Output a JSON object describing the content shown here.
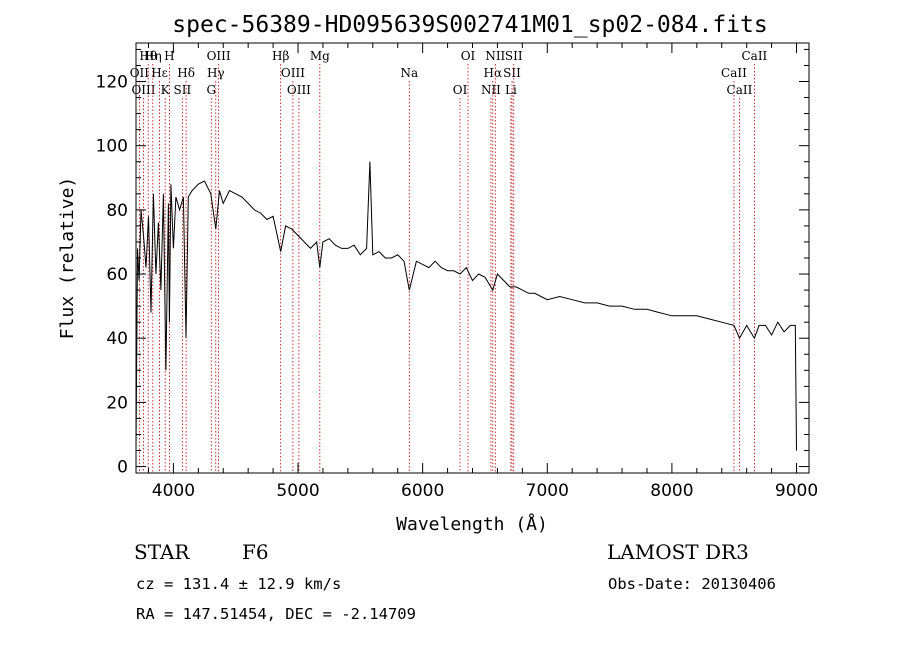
{
  "chart_data": {
    "type": "line",
    "title": "spec-56389-HD095639S002741M01_sp02-084.fits",
    "xlabel": "Wavelength (Å)",
    "ylabel": "Flux (relative)",
    "xlim": [
      3700,
      9100
    ],
    "ylim": [
      -2,
      132
    ],
    "xticks": [
      4000,
      5000,
      6000,
      7000,
      8000,
      9000
    ],
    "yticks": [
      0,
      20,
      40,
      60,
      80,
      100,
      120
    ],
    "series": [
      {
        "name": "flux",
        "x": [
          3700,
          3712,
          3725,
          3740,
          3760,
          3780,
          3800,
          3820,
          3840,
          3860,
          3880,
          3900,
          3920,
          3940,
          3960,
          3968,
          3980,
          4000,
          4020,
          4050,
          4080,
          4101,
          4120,
          4150,
          4200,
          4250,
          4300,
          4340,
          4370,
          4400,
          4450,
          4500,
          4550,
          4600,
          4650,
          4700,
          4750,
          4800,
          4861,
          4900,
          4950,
          5000,
          5050,
          5100,
          5150,
          5175,
          5200,
          5250,
          5300,
          5350,
          5400,
          5450,
          5500,
          5550,
          5577,
          5600,
          5650,
          5700,
          5750,
          5800,
          5850,
          5893,
          5950,
          6000,
          6050,
          6100,
          6150,
          6200,
          6250,
          6300,
          6350,
          6400,
          6450,
          6500,
          6563,
          6600,
          6650,
          6700,
          6750,
          6800,
          6850,
          6900,
          6950,
          7000,
          7100,
          7200,
          7300,
          7400,
          7500,
          7600,
          7700,
          7800,
          7900,
          8000,
          8100,
          8200,
          8300,
          8400,
          8498,
          8542,
          8600,
          8662,
          8700,
          8750,
          8800,
          8850,
          8900,
          8950,
          8990,
          9000
        ],
        "y": [
          5,
          68,
          58,
          80,
          72,
          62,
          78,
          48,
          85,
          60,
          76,
          55,
          85,
          30,
          82,
          45,
          88,
          68,
          84,
          80,
          84,
          40,
          84,
          86,
          88,
          89,
          85,
          74,
          86,
          82,
          86,
          85,
          84,
          82,
          80,
          79,
          77,
          78,
          67,
          75,
          74,
          72,
          70,
          68,
          70,
          62,
          70,
          71,
          69,
          68,
          68,
          69,
          66,
          68,
          95,
          66,
          67,
          65,
          65,
          66,
          64,
          55,
          64,
          63,
          62,
          64,
          62,
          61,
          61,
          60,
          62,
          58,
          60,
          59,
          55,
          60,
          58,
          56,
          56,
          55,
          54,
          54,
          53,
          52,
          53,
          52,
          51,
          51,
          50,
          50,
          49,
          49,
          48,
          47,
          47,
          47,
          46,
          45,
          44,
          40,
          44,
          40,
          44,
          44,
          41,
          45,
          42,
          44,
          44,
          5
        ]
      }
    ],
    "spectral_lines": [
      {
        "name": "Hθ",
        "wavelength": 3798
      },
      {
        "name": "OII",
        "wavelength": 3727
      },
      {
        "name": "OIII",
        "wavelength": 3760
      },
      {
        "name": "Hη",
        "wavelength": 3835
      },
      {
        "name": "Hε",
        "wavelength": 3889
      },
      {
        "name": "K",
        "wavelength": 3934
      },
      {
        "name": "H",
        "wavelength": 3968
      },
      {
        "name": "Hδ",
        "wavelength": 4102
      },
      {
        "name": "SII",
        "wavelength": 4072
      },
      {
        "name": "OIII",
        "wavelength": 4363
      },
      {
        "name": "Hγ",
        "wavelength": 4340
      },
      {
        "name": "G",
        "wavelength": 4304
      },
      {
        "name": "Hβ",
        "wavelength": 4861
      },
      {
        "name": "OIII",
        "wavelength": 4959
      },
      {
        "name": "OIII",
        "wavelength": 5007
      },
      {
        "name": "Mg",
        "wavelength": 5175
      },
      {
        "name": "Na",
        "wavelength": 5893
      },
      {
        "name": "OI",
        "wavelength": 6300
      },
      {
        "name": "OI",
        "wavelength": 6364
      },
      {
        "name": "Hα",
        "wavelength": 6563
      },
      {
        "name": "NII",
        "wavelength": 6548
      },
      {
        "name": "NII",
        "wavelength": 6583
      },
      {
        "name": "SII",
        "wavelength": 6717
      },
      {
        "name": "Li",
        "wavelength": 6708
      },
      {
        "name": "SII",
        "wavelength": 6731
      },
      {
        "name": "CaII",
        "wavelength": 8498
      },
      {
        "name": "CaII",
        "wavelength": 8542
      },
      {
        "name": "CaII",
        "wavelength": 8662
      }
    ]
  },
  "info": {
    "object_class": "STAR",
    "subclass": "F6",
    "survey": "LAMOST DR3",
    "redshift": "cz = 131.4 ± 12.9 km/s",
    "obs_date": "Obs-Date: 20130406",
    "coordinates": "RA = 147.51454, DEC =  -2.14709"
  }
}
